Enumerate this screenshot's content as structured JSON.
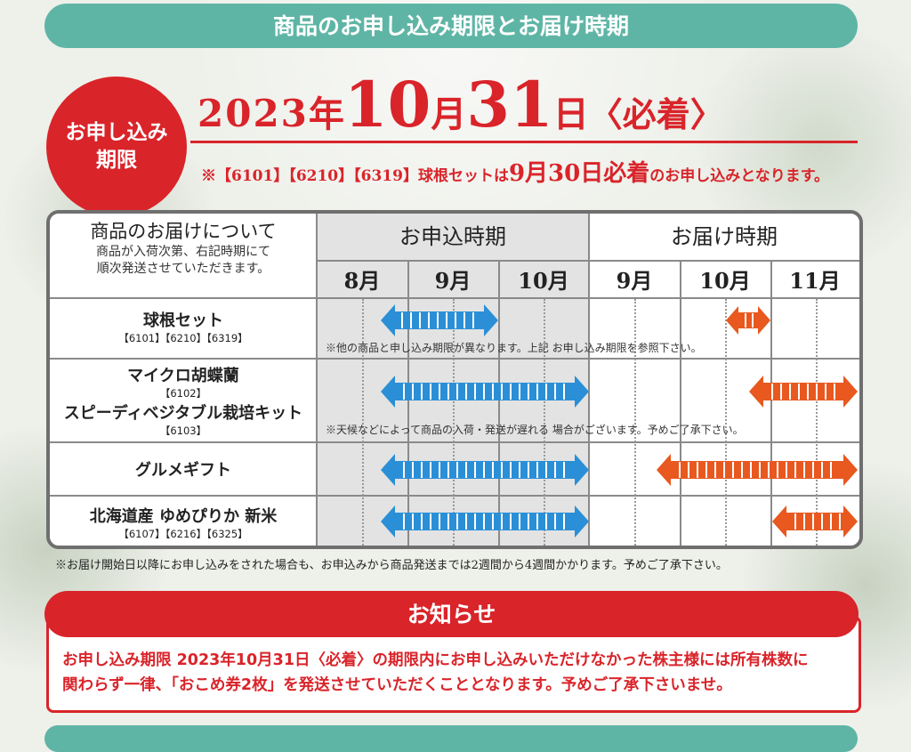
{
  "banner_title": "商品のお申し込み期限とお届け時期",
  "deadline": {
    "badge_line1": "お申し込み",
    "badge_line2": "期限",
    "year": "2023",
    "nen": "年",
    "month": "10",
    "tsuki": "月",
    "day": "31",
    "nichi": "日",
    "note": "〈必着〉",
    "sub_note_pre": "※【6101】【6210】【6319】球根セットは",
    "sub_note_big": "9月30日必着",
    "sub_note_post": "のお申し込みとなります。"
  },
  "schedule": {
    "desc_title": "商品のお届けについて",
    "desc_line1": "商品が入荷次第、右記時期にて",
    "desc_line2": "順次発送させていただきます。",
    "apply_label": "お申込時期",
    "delivery_label": "お届け時期",
    "apply_months": [
      "8月",
      "9月",
      "10月"
    ],
    "delivery_months": [
      "9月",
      "10月",
      "11月"
    ],
    "rows": [
      {
        "name": "球根セット",
        "code": "【6101】【6210】【6319】",
        "note": "※他の商品と申し込み期限が異なります。上記 お申し込み期限を参照下さい。"
      },
      {
        "name": "マイクロ胡蝶蘭",
        "code": "【6102】",
        "name2": "スピーディベジタブル栽培キット",
        "code2": "【6103】",
        "note": "※天候などによって商品の入荷・発送が遅れる 場合がございます。予めご了承下さい。"
      },
      {
        "name": "グルメギフト",
        "code": ""
      },
      {
        "name": "北海道産 ゆめぴりか 新米",
        "code": "【6107】【6216】【6325】"
      }
    ],
    "colors": {
      "apply_arrow": "#2a8fd6",
      "delivery_arrow": "#e8581f"
    }
  },
  "footnote": "※お届け開始日以降にお申し込みをされた場合も、お申込みから商品発送までは2週間から4週間かかります。予めご了承下さい。",
  "notice": {
    "title": "お知らせ",
    "line1": "お申し込み期限 2023年10月31日〈必着〉の期限内にお申し込みいただけなかった株主様には所有株数に",
    "line2": "関わらず一律、「おこめ券2枚」を発送させていただくこととなります。予めご了承下さいませ。"
  },
  "colors": {
    "accent_red": "#d9242a",
    "teal": "#5fb5a5"
  }
}
